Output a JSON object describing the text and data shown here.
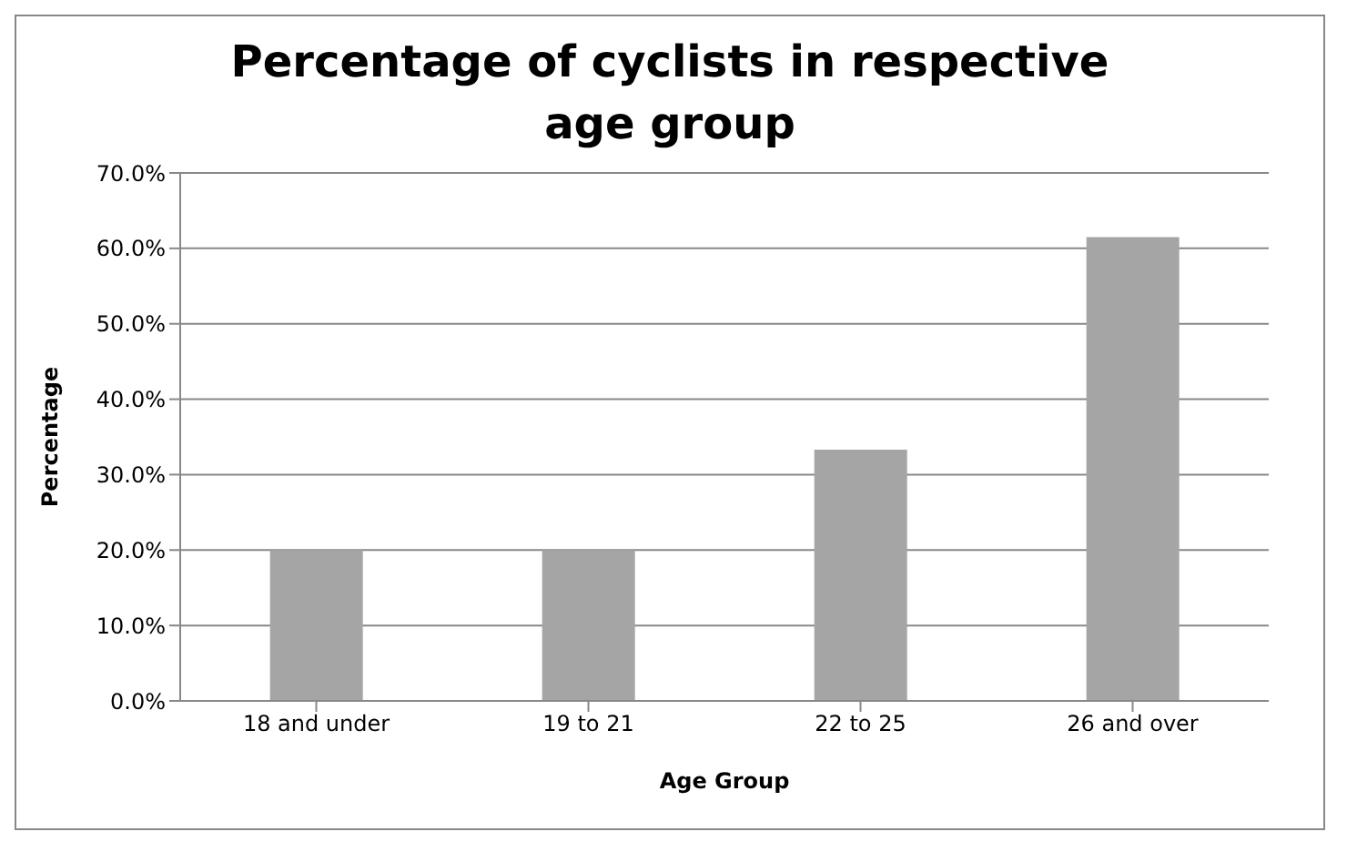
{
  "chart_data": {
    "type": "bar",
    "title": "Percentage of cyclists in respective age group",
    "xlabel": "Age Group",
    "ylabel": "Percentage",
    "categories": [
      "18 and under",
      "19 to 21",
      "22 to 25",
      "26 and over"
    ],
    "values": [
      20,
      20,
      33.3,
      61.5
    ],
    "color": "#a5a5a5",
    "ylim": [
      0,
      70
    ],
    "yticks": [
      {
        "value": 0,
        "label": "0.0%"
      },
      {
        "value": 10,
        "label": "10.0%"
      },
      {
        "value": 20,
        "label": "20.0%"
      },
      {
        "value": 30,
        "label": "30.0%"
      },
      {
        "value": 40,
        "label": "40.0%"
      },
      {
        "value": 50,
        "label": "50.0%"
      },
      {
        "value": 60,
        "label": "60.0%"
      },
      {
        "value": 70,
        "label": "70.0%"
      }
    ],
    "grid": "y",
    "legend": false
  }
}
